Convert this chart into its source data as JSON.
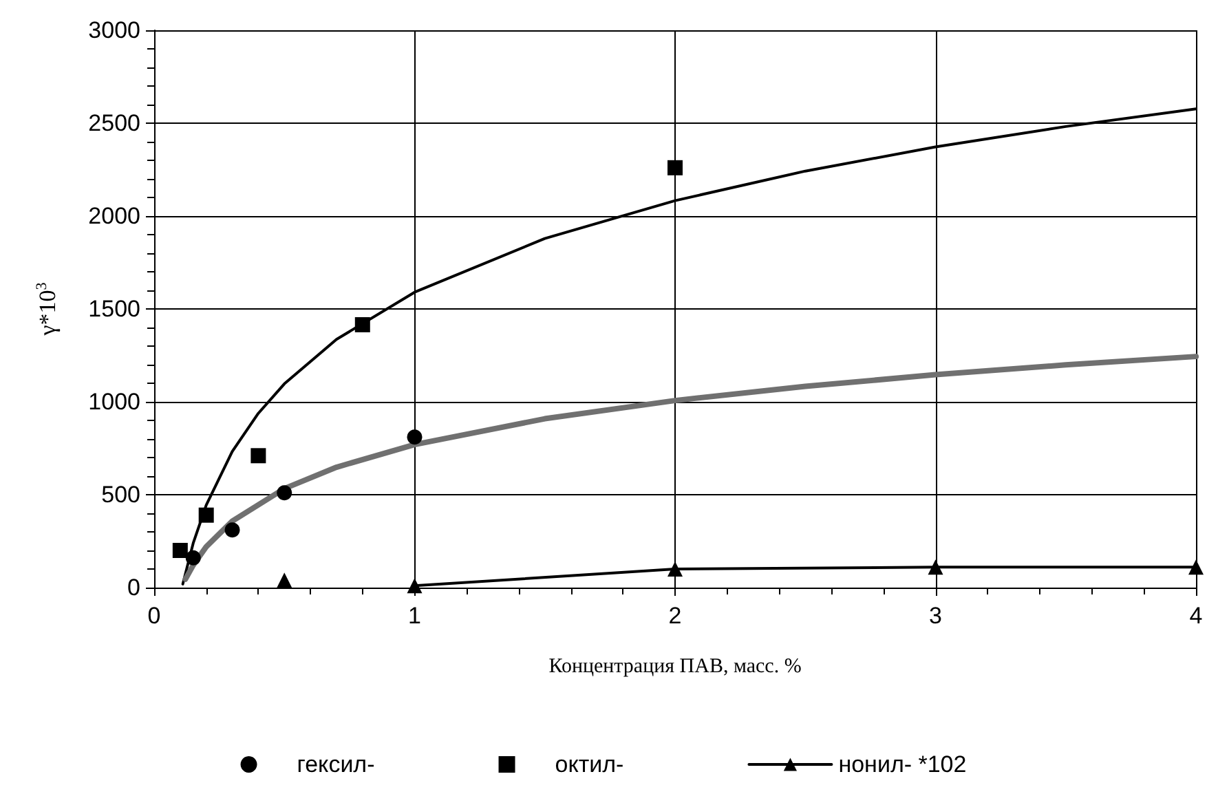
{
  "chart_data": {
    "type": "scatter",
    "xlabel": "Концентрация ПАВ, масс. %",
    "ylabel": "γ*10$^{3}$",
    "xlim": [
      0,
      4
    ],
    "xticks": [
      0,
      1,
      2,
      3,
      4
    ],
    "ylim": [
      0,
      3000
    ],
    "yticks": [
      0,
      500,
      1000,
      1500,
      2000,
      2500,
      3000
    ],
    "grid": true,
    "legend": "bottom",
    "series": [
      {
        "name": "гексил-",
        "marker": "circle",
        "color": "#000000",
        "x": [
          0.15,
          0.3,
          0.5,
          1
        ],
        "values": [
          160,
          310,
          510,
          810
        ]
      },
      {
        "name": "октил-",
        "marker": "square",
        "color": "#000000",
        "x": [
          0.1,
          0.2,
          0.4,
          0.8,
          2
        ],
        "values": [
          200,
          390,
          710,
          1415,
          2260
        ]
      },
      {
        "name": "нонил- *102",
        "type": "line",
        "marker": "triangle",
        "line_style": "solid",
        "color": "#000000",
        "x": [
          1,
          2,
          3,
          4
        ],
        "values": [
          10,
          100,
          110,
          110
        ]
      },
      {
        "marker": "triangle",
        "color": "#000000",
        "x": [
          0.5
        ],
        "values": [
          40
        ]
      },
      {
        "type": "line",
        "marker": "none",
        "line_style": "solid",
        "color": "#000000",
        "x": [
          0.11,
          0.15,
          0.2,
          0.3,
          0.4,
          0.5,
          0.7,
          1,
          1.5,
          2,
          2.5,
          3,
          3.5,
          4
        ],
        "values": [
          19,
          239,
          444,
          733,
          938,
          1097,
          1336,
          1590,
          1879,
          2083,
          2242,
          2372,
          2482,
          2577
        ]
      },
      {
        "type": "line",
        "marker": "none",
        "line_style": "solid",
        "color": "#707070",
        "x": [
          0.12,
          0.15,
          0.2,
          0.3,
          0.5,
          0.7,
          1,
          1.5,
          2,
          2.5,
          3,
          3.5,
          4
        ],
        "values": [
          45,
          121,
          220,
          358,
          533,
          648,
          770,
          909,
          1007,
          1083,
          1146,
          1199,
          1244
        ]
      }
    ]
  }
}
